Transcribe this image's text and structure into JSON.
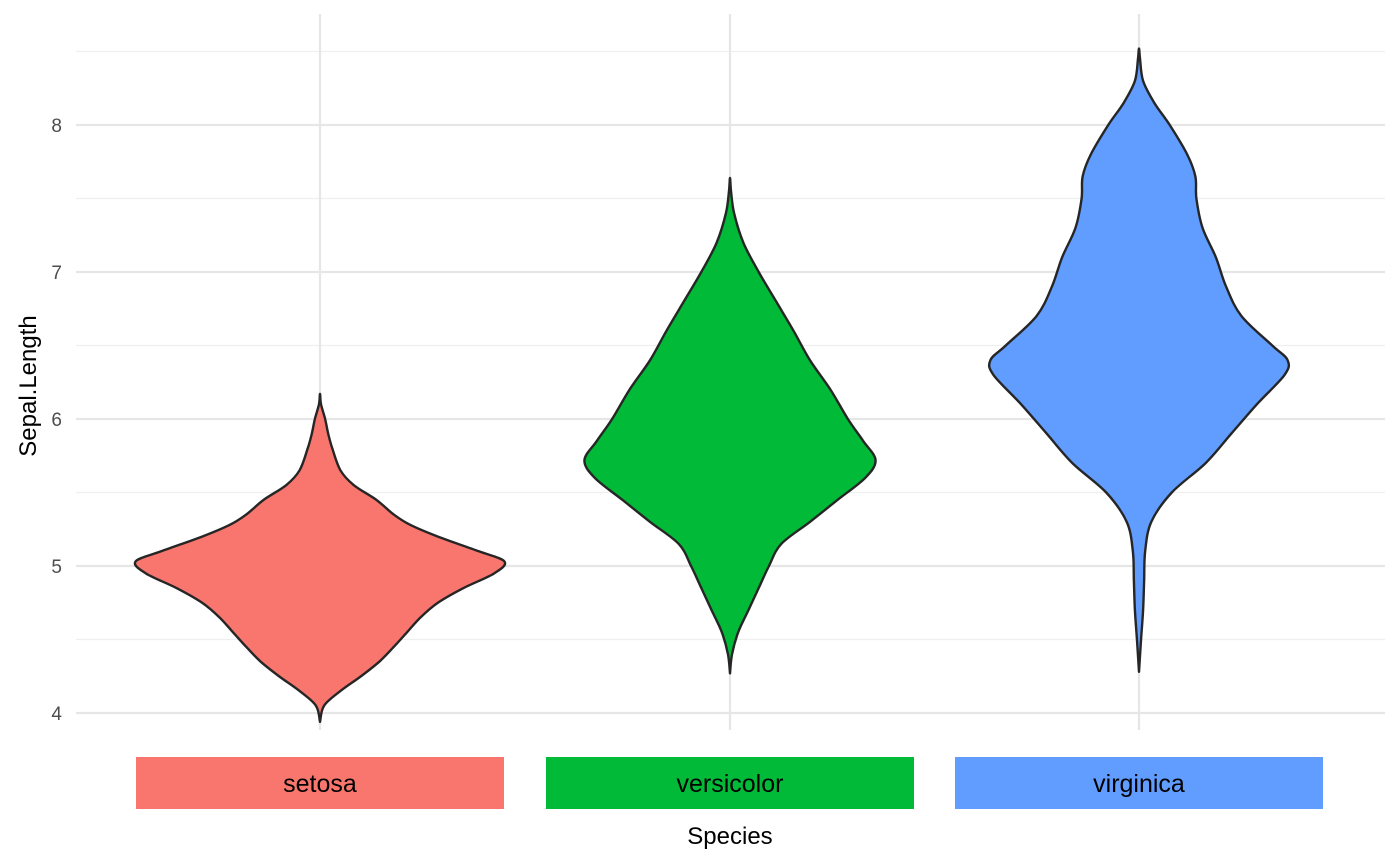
{
  "chart_data": {
    "type": "violin",
    "xlabel": "Species",
    "ylabel": "Sepal.Length",
    "ylim": [
      3.6,
      8.6
    ],
    "yticks": [
      4,
      5,
      6,
      7,
      8
    ],
    "grid": true,
    "legend": "none",
    "categories": [
      "setosa",
      "versicolor",
      "virginica"
    ],
    "series": [
      {
        "name": "setosa",
        "color": "#F8766D",
        "density": [
          [
            3.94,
            0
          ],
          [
            4.05,
            0.04
          ],
          [
            4.15,
            0.2
          ],
          [
            4.25,
            0.4
          ],
          [
            4.35,
            0.58
          ],
          [
            4.45,
            0.72
          ],
          [
            4.55,
            0.85
          ],
          [
            4.65,
            0.98
          ],
          [
            4.75,
            1.15
          ],
          [
            4.85,
            1.4
          ],
          [
            4.95,
            1.7
          ],
          [
            5.03,
            1.8
          ],
          [
            5.1,
            1.55
          ],
          [
            5.2,
            1.15
          ],
          [
            5.28,
            0.88
          ],
          [
            5.35,
            0.72
          ],
          [
            5.45,
            0.55
          ],
          [
            5.55,
            0.33
          ],
          [
            5.65,
            0.2
          ],
          [
            5.8,
            0.12
          ],
          [
            5.9,
            0.08
          ],
          [
            6.0,
            0.05
          ],
          [
            6.1,
            0.01
          ],
          [
            6.17,
            0
          ]
        ]
      },
      {
        "name": "versicolor",
        "color": "#00BA38",
        "density": [
          [
            4.27,
            0
          ],
          [
            4.4,
            0.02
          ],
          [
            4.55,
            0.08
          ],
          [
            4.7,
            0.18
          ],
          [
            4.85,
            0.28
          ],
          [
            5.0,
            0.38
          ],
          [
            5.15,
            0.5
          ],
          [
            5.3,
            0.78
          ],
          [
            5.45,
            1.05
          ],
          [
            5.6,
            1.32
          ],
          [
            5.72,
            1.42
          ],
          [
            5.85,
            1.3
          ],
          [
            6.0,
            1.15
          ],
          [
            6.2,
            0.98
          ],
          [
            6.4,
            0.78
          ],
          [
            6.6,
            0.62
          ],
          [
            6.8,
            0.45
          ],
          [
            7.0,
            0.28
          ],
          [
            7.2,
            0.13
          ],
          [
            7.4,
            0.04
          ],
          [
            7.55,
            0.01
          ],
          [
            7.64,
            0
          ]
        ]
      },
      {
        "name": "virginica",
        "color": "#619CFF",
        "density": [
          [
            4.28,
            0
          ],
          [
            4.5,
            0.02
          ],
          [
            4.7,
            0.04
          ],
          [
            4.9,
            0.05
          ],
          [
            5.1,
            0.06
          ],
          [
            5.3,
            0.12
          ],
          [
            5.5,
            0.32
          ],
          [
            5.7,
            0.65
          ],
          [
            5.9,
            0.9
          ],
          [
            6.1,
            1.15
          ],
          [
            6.3,
            1.42
          ],
          [
            6.4,
            1.45
          ],
          [
            6.5,
            1.3
          ],
          [
            6.7,
            1.0
          ],
          [
            6.9,
            0.85
          ],
          [
            7.1,
            0.75
          ],
          [
            7.3,
            0.62
          ],
          [
            7.5,
            0.56
          ],
          [
            7.65,
            0.55
          ],
          [
            7.8,
            0.47
          ],
          [
            8.0,
            0.3
          ],
          [
            8.15,
            0.15
          ],
          [
            8.3,
            0.04
          ],
          [
            8.45,
            0.01
          ],
          [
            8.52,
            0
          ]
        ]
      }
    ]
  }
}
